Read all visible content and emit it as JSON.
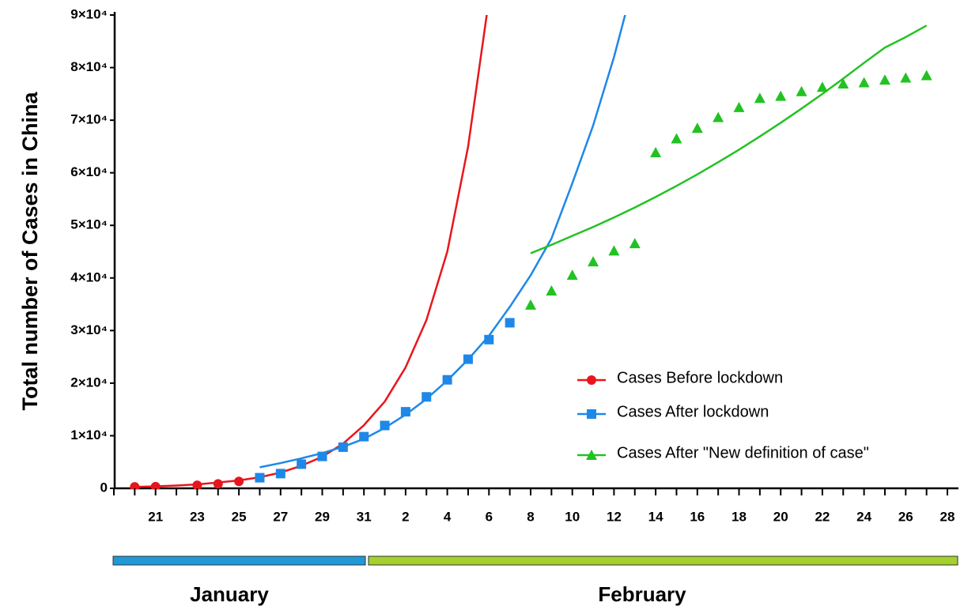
{
  "chart_data": {
    "type": "line",
    "y_label": "Total number of Cases in China",
    "categories": [
      null,
      null,
      "21",
      null,
      "23",
      null,
      "25",
      null,
      "27",
      null,
      "29",
      null,
      "31",
      null,
      "2",
      null,
      "4",
      null,
      "6",
      null,
      "8",
      null,
      "10",
      null,
      "12",
      null,
      "14",
      null,
      "16",
      null,
      "18",
      null,
      "20",
      null,
      "22",
      null,
      "24",
      null,
      "26",
      null,
      "28"
    ],
    "ylim": [
      0,
      90000
    ],
    "yticks": [
      0,
      {
        "value": 10000,
        "label": "1×10⁴"
      },
      {
        "value": 20000,
        "label": "2×10⁴"
      },
      {
        "value": 30000,
        "label": "3×10⁴"
      },
      {
        "value": 40000,
        "label": "4×10⁴"
      },
      {
        "value": 50000,
        "label": "5×10⁴"
      },
      {
        "value": 60000,
        "label": "6×10⁴"
      },
      {
        "value": 70000,
        "label": "7×10⁴"
      },
      {
        "value": 80000,
        "label": "8×10⁴"
      },
      {
        "value": 90000,
        "label": "9×10⁴"
      }
    ],
    "legend": "right",
    "series": [
      {
        "name": "Cases Before lockdown",
        "color": "#e8161c",
        "marker": "circle",
        "values": [
          null,
          282,
          314,
          null,
          581,
          846,
          1320,
          null,
          null,
          null,
          null,
          null,
          null,
          null,
          null,
          null,
          null,
          null,
          null,
          null,
          null,
          null,
          null,
          null,
          null,
          null,
          null,
          null,
          null,
          null,
          null,
          null,
          null,
          null,
          null,
          null,
          null,
          null,
          null,
          null,
          null
        ],
        "fit": [
          null,
          260,
          370,
          520,
          750,
          1100,
          1500,
          2100,
          3000,
          4300,
          6000,
          8500,
          12000,
          16500,
          23000,
          32000,
          45000,
          65000,
          93000,
          null,
          null,
          null,
          null,
          null,
          null,
          null,
          null,
          null,
          null,
          null,
          null,
          null,
          null,
          null,
          null,
          null,
          null,
          null,
          null,
          null,
          null
        ]
      },
      {
        "name": "Cases After lockdown",
        "color": "#1e88e8",
        "marker": "square",
        "values": [
          null,
          null,
          null,
          null,
          null,
          null,
          null,
          2014,
          2798,
          4593,
          6065,
          7824,
          9826,
          11946,
          14557,
          17391,
          20630,
          24554,
          28276,
          31481,
          null,
          null,
          null,
          null,
          null,
          null,
          null,
          null,
          null,
          null,
          null,
          null,
          null,
          null,
          null,
          null,
          null,
          null,
          null,
          null,
          null
        ],
        "fit": [
          null,
          null,
          null,
          null,
          null,
          null,
          null,
          4000,
          4800,
          5700,
          6700,
          7900,
          9400,
          11500,
          14000,
          17000,
          20500,
          24500,
          29000,
          34500,
          40500,
          47500,
          58000,
          69000,
          82000,
          97000,
          null,
          null,
          null,
          null,
          null,
          null,
          null,
          null,
          null,
          null,
          null,
          null,
          null,
          null,
          null
        ]
      },
      {
        "name": "Cases After \"New definition of case\"",
        "color": "#22c222",
        "marker": "triangle",
        "values": [
          null,
          null,
          null,
          null,
          null,
          null,
          null,
          null,
          null,
          null,
          null,
          null,
          null,
          null,
          null,
          null,
          null,
          null,
          null,
          null,
          34886,
          37558,
          40554,
          43103,
          45171,
          46550,
          63851,
          66492,
          68500,
          70548,
          72436,
          74185,
          74576,
          75465,
          76288,
          76936,
          77150,
          77658,
          78064,
          78497,
          null
        ],
        "fit": [
          null,
          null,
          null,
          null,
          null,
          null,
          null,
          null,
          null,
          null,
          null,
          null,
          null,
          null,
          null,
          null,
          null,
          null,
          null,
          null,
          44700,
          46300,
          48000,
          49700,
          51500,
          53400,
          55400,
          57500,
          59700,
          62000,
          64400,
          66900,
          69500,
          72200,
          75000,
          77900,
          80900,
          83800,
          85800,
          88000,
          null
        ]
      }
    ],
    "months": [
      {
        "label": "January",
        "color": "#1e9ad8"
      },
      {
        "label": "February",
        "color": "#a4d12c"
      }
    ]
  }
}
